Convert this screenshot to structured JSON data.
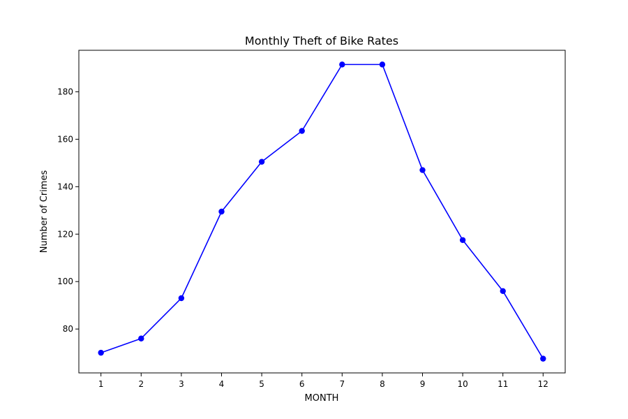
{
  "chart_data": {
    "type": "line",
    "title": "Monthly Theft of Bike Rates",
    "xlabel": "MONTH",
    "ylabel": "Number of Crimes",
    "x": [
      1,
      2,
      3,
      4,
      5,
      6,
      7,
      8,
      9,
      10,
      11,
      12
    ],
    "x_ticks": [
      "1",
      "2",
      "3",
      "4",
      "5",
      "6",
      "7",
      "8",
      "9",
      "10",
      "11",
      "12"
    ],
    "y_ticks": [
      "80",
      "100",
      "120",
      "140",
      "160",
      "180"
    ],
    "y_tick_values": [
      80,
      100,
      120,
      140,
      160,
      180
    ],
    "xlim": [
      0.45,
      12.55
    ],
    "ylim": [
      61.5,
      197.5
    ],
    "grid": false,
    "series": [
      {
        "values": [
          70,
          76,
          93,
          129.5,
          150.5,
          163.5,
          191.5,
          191.5,
          147,
          117.5,
          96,
          67.5
        ],
        "color": "#0000ff",
        "marker": "circle"
      }
    ]
  }
}
